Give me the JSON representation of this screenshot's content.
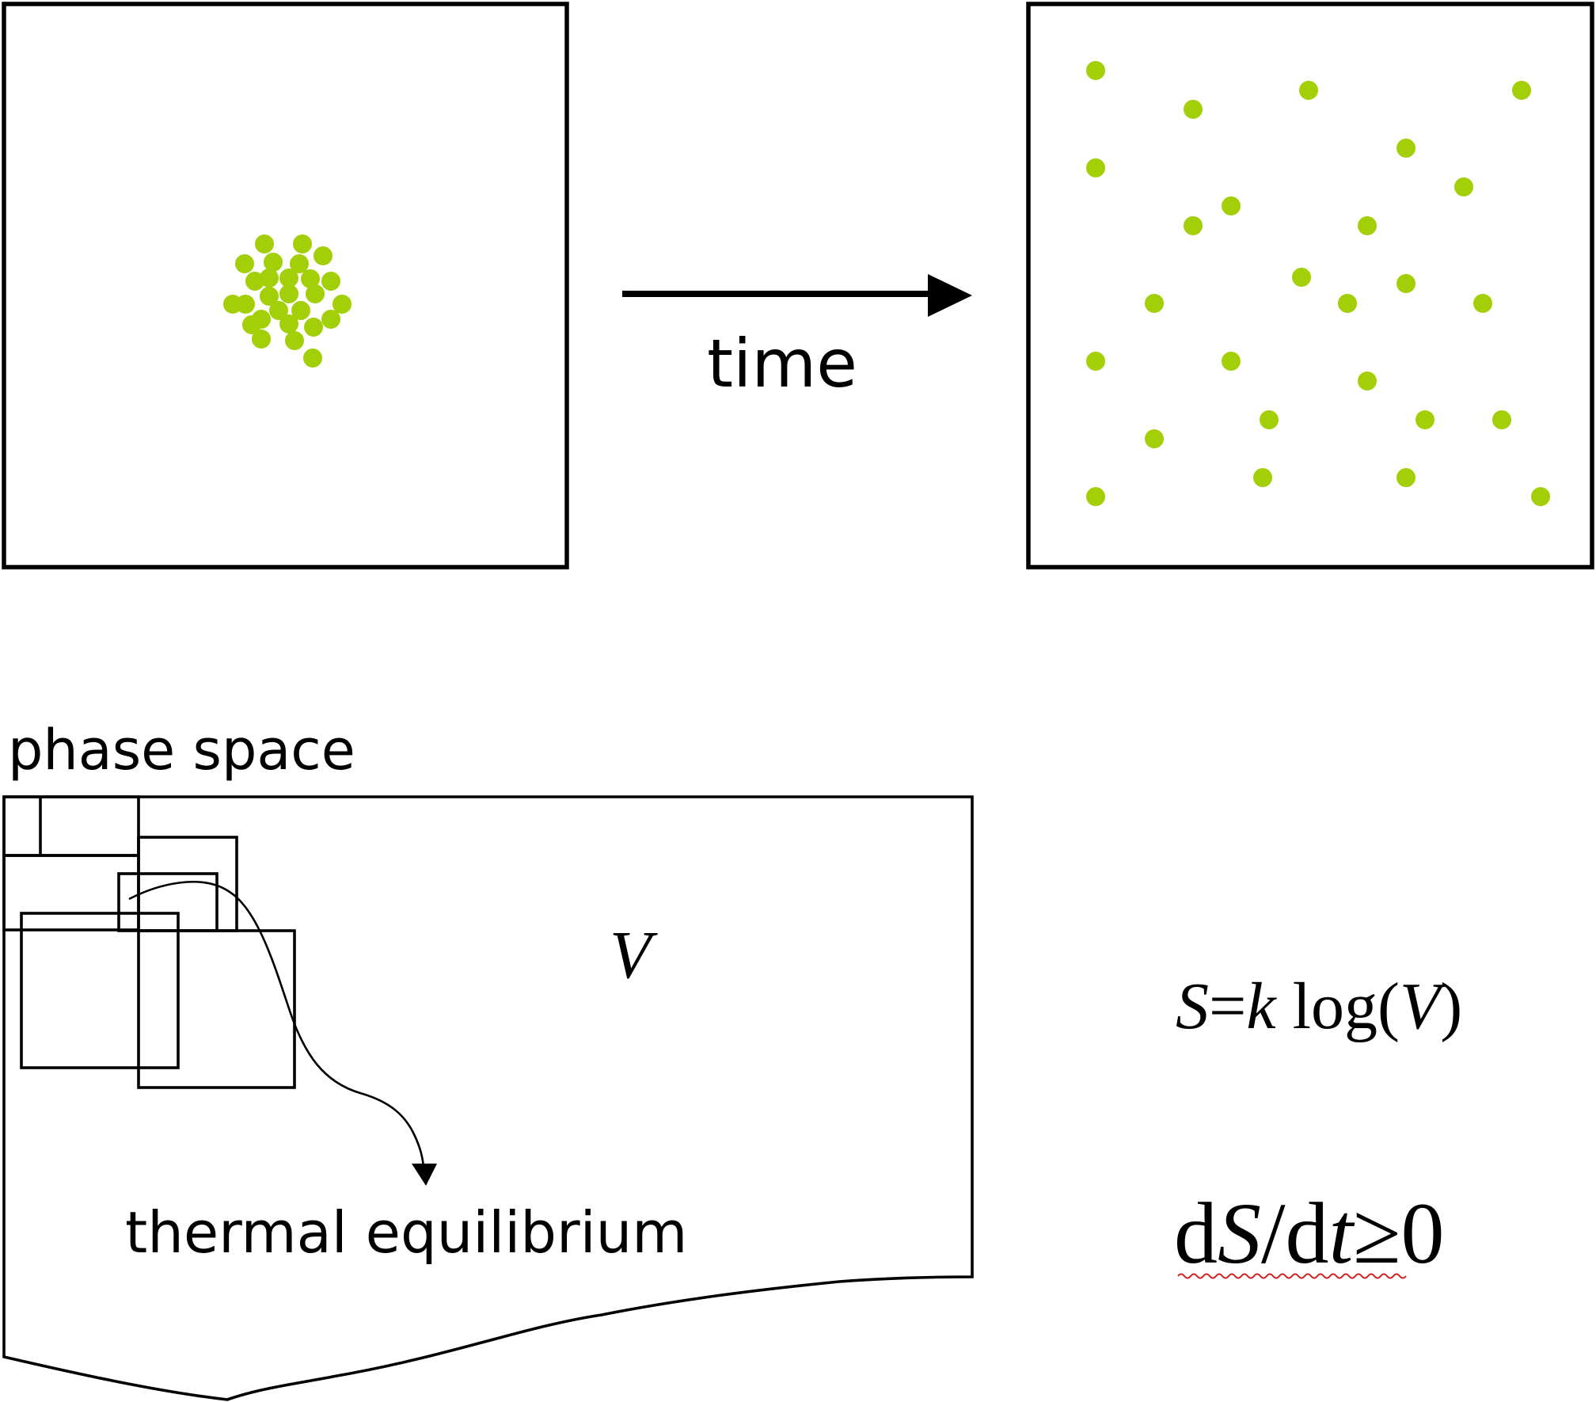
{
  "arrow_label": "time",
  "phase_space_label": "phase space",
  "volume_symbol": "V",
  "equilibrium_label": "thermal equilibrium",
  "equation_entropy": {
    "S": "S",
    "eq": "=",
    "k": "k",
    "log": " log(",
    "V": "V",
    "close": ")"
  },
  "equation_second_law": {
    "d1": "d",
    "S": "S",
    "slash": "/d",
    "t": "t",
    "rest": "≥0"
  },
  "colors": {
    "particle": "#a2cf07",
    "line": "#000000",
    "spellcheck_underline": "#d62020"
  }
}
